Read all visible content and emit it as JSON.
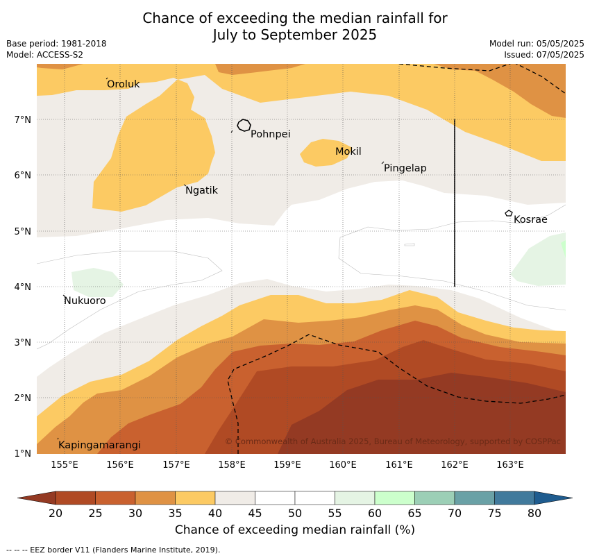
{
  "title_line1": "Chance of exceeding the median rainfall for",
  "title_line2": "July to September 2025",
  "meta_left": [
    "Base period: 1981-2018",
    "Model: ACCESS-S2"
  ],
  "meta_right": [
    "Model run: 05/05/2025",
    "Issued: 07/05/2025"
  ],
  "x_ticks": [
    "155°E",
    "156°E",
    "157°E",
    "158°E",
    "159°E",
    "160°E",
    "161°E",
    "162°E",
    "163°E"
  ],
  "y_ticks": [
    "7°N",
    "6°N",
    "5°N",
    "4°N",
    "3°N",
    "2°N",
    "1°N"
  ],
  "places": [
    {
      "name": "Oroluk"
    },
    {
      "name": "Pohnpei"
    },
    {
      "name": "Mokil"
    },
    {
      "name": "Pingelap"
    },
    {
      "name": "Ngatik"
    },
    {
      "name": "Kosrae"
    },
    {
      "name": "Nukuoro"
    },
    {
      "name": "Kapingamarangi"
    }
  ],
  "copyright": "© Commonwealth of Australia 2025, Bureau of Meteorology, supported by COSPPac",
  "colorbar": {
    "title": "Chance of exceeding median rainfall (%)",
    "ticks": [
      "20",
      "25",
      "30",
      "35",
      "40",
      "45",
      "50",
      "55",
      "60",
      "65",
      "70",
      "75",
      "80"
    ],
    "under_color": "#943a23",
    "over_color": "#1f5c8f",
    "bins": [
      {
        "range": "20-25",
        "color": "#b04a24"
      },
      {
        "range": "25-30",
        "color": "#c9612f"
      },
      {
        "range": "30-35",
        "color": "#df9244"
      },
      {
        "range": "35-40",
        "color": "#fcca63"
      },
      {
        "range": "40-45",
        "color": "#f0ece7"
      },
      {
        "range": "45-50",
        "color": "#ffffff"
      },
      {
        "range": "50-55",
        "color": "#ffffff"
      },
      {
        "range": "55-60",
        "color": "#e5f4e4"
      },
      {
        "range": "60-65",
        "color": "#ccffcc"
      },
      {
        "range": "65-70",
        "color": "#9ccfb6"
      },
      {
        "range": "70-75",
        "color": "#6aa1a6"
      },
      {
        "range": "75-80",
        "color": "#417a9c"
      }
    ]
  },
  "footnote": "--  --  -- EEZ border V11 (Flanders Marine Institute, 2019)."
}
